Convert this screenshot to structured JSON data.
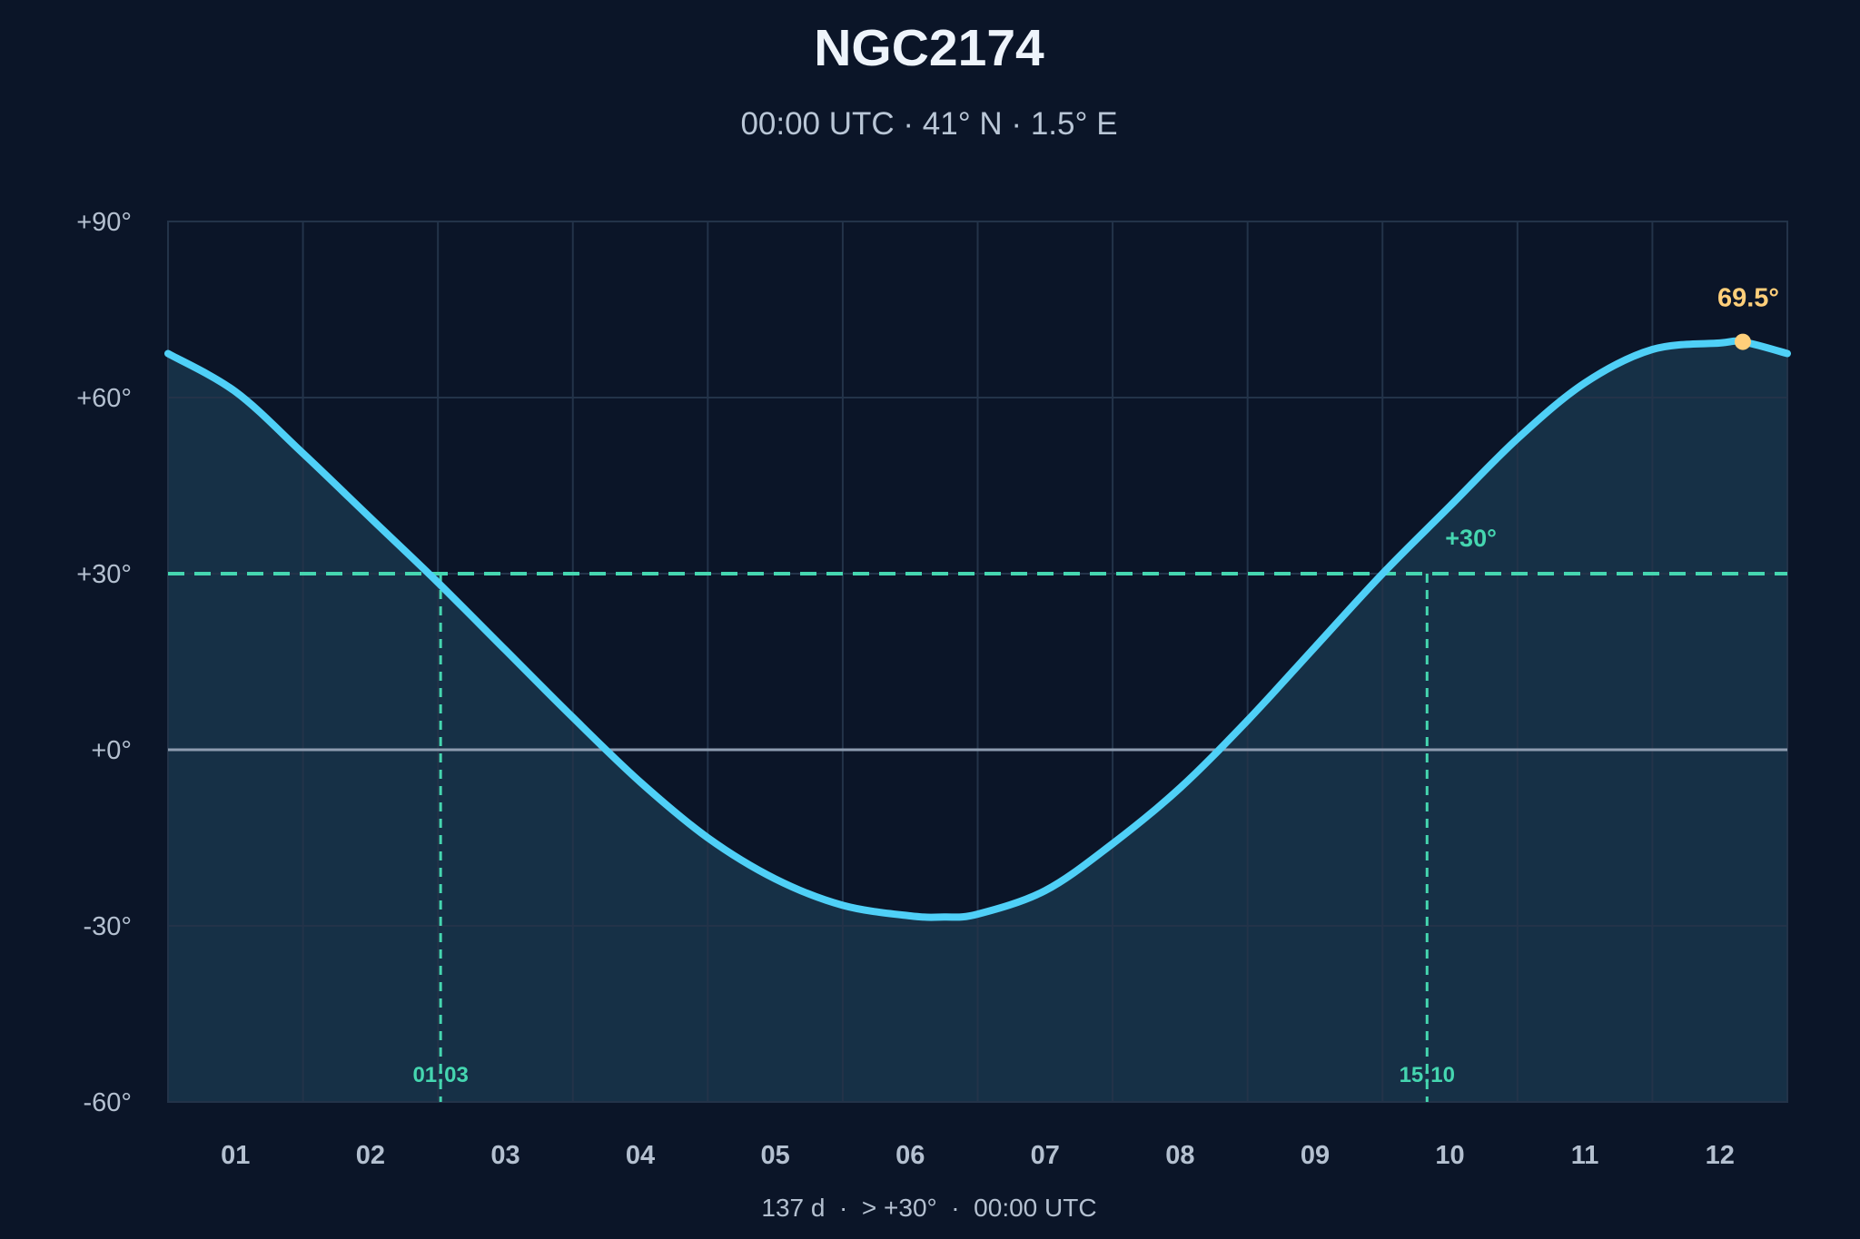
{
  "chart_data": {
    "type": "area",
    "title": "NGC2174",
    "subtitle": "00:00 UTC · 41° N · 1.5° E",
    "xlabel": "",
    "ylabel": "",
    "x_tick_labels": [
      "01",
      "02",
      "03",
      "04",
      "05",
      "06",
      "07",
      "08",
      "09",
      "10",
      "11",
      "12"
    ],
    "x_domain_months": [
      0.5,
      12.5
    ],
    "y_ticks": [
      90,
      60,
      30,
      0,
      -30,
      -60
    ],
    "y_tick_labels": [
      "+90°",
      "+60°",
      "+30°",
      "+0°",
      "-30°",
      "-60°"
    ],
    "ylim": [
      -60,
      90
    ],
    "grid": true,
    "series": [
      {
        "x": [
          0.5,
          1.0,
          1.5,
          2.0,
          2.5,
          3.0,
          3.5,
          4.0,
          4.5,
          5.0,
          5.5,
          6.0,
          6.25,
          6.5,
          7.0,
          7.5,
          8.0,
          8.5,
          9.0,
          9.5,
          10.0,
          10.5,
          11.0,
          11.5,
          12.0,
          12.17,
          12.5
        ],
        "y": [
          67.5,
          61.0,
          50.5,
          39.5,
          28.5,
          17.0,
          5.5,
          -5.5,
          -15.0,
          -22.0,
          -26.5,
          -28.3,
          -28.5,
          -28.0,
          -24.0,
          -16.0,
          -6.5,
          5.0,
          17.5,
          30.0,
          41.5,
          53.0,
          62.5,
          68.2,
          69.3,
          69.5,
          67.5
        ]
      }
    ],
    "threshold": {
      "value": 30,
      "label": "+30°"
    },
    "crossings": [
      {
        "x": 2.52,
        "label": "01:03"
      },
      {
        "x": 9.83,
        "label": "15:10"
      }
    ],
    "peak": {
      "x": 12.17,
      "y": 69.5,
      "label": "69.5°"
    },
    "footer": "137 d  ·  > +30°  ·  00:00 UTC",
    "colors": {
      "background": "#0b1528",
      "curve": "#4fd0f7",
      "fill": "#163046",
      "threshold": "#45d6b0",
      "zero_line": "#8d9cb0",
      "grid": "#233349",
      "peak": "#ffcf7a"
    }
  }
}
